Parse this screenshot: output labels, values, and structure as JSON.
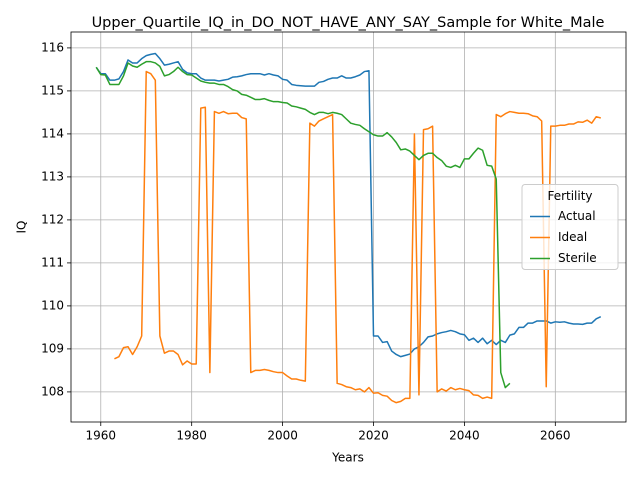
{
  "chart_data": {
    "type": "line",
    "title": "Upper_Quartile_IQ_in_DO_NOT_HAVE_ANY_SAY_Sample for White_Male",
    "x_label": "Years",
    "y_label": "IQ",
    "legend_title": "Fertility",
    "legend": "right",
    "grid": true,
    "xlim": [
      1953.45,
      2075.55
    ],
    "ylim": [
      107.3,
      116.37
    ],
    "xticks": [
      1960,
      1980,
      2000,
      2020,
      2040,
      2060
    ],
    "yticks": [
      108,
      109,
      110,
      111,
      112,
      113,
      114,
      115,
      116
    ],
    "x": [
      1959,
      1960,
      1961,
      1962,
      1963,
      1964,
      1965,
      1966,
      1967,
      1968,
      1969,
      1970,
      1971,
      1972,
      1973,
      1974,
      1975,
      1976,
      1977,
      1978,
      1979,
      1980,
      1981,
      1982,
      1983,
      1984,
      1985,
      1986,
      1987,
      1988,
      1989,
      1990,
      1991,
      1992,
      1993,
      1994,
      1995,
      1996,
      1997,
      1998,
      1999,
      2000,
      2001,
      2002,
      2003,
      2004,
      2005,
      2006,
      2007,
      2008,
      2009,
      2010,
      2011,
      2012,
      2013,
      2014,
      2015,
      2016,
      2017,
      2018,
      2019,
      2020,
      2021,
      2022,
      2023,
      2024,
      2025,
      2026,
      2027,
      2028,
      2029,
      2030,
      2031,
      2032,
      2033,
      2034,
      2035,
      2036,
      2037,
      2038,
      2039,
      2040,
      2041,
      2042,
      2043,
      2044,
      2045,
      2046,
      2047,
      2048,
      2049,
      2050,
      2051,
      2052,
      2053,
      2054,
      2055,
      2056,
      2057,
      2058,
      2059,
      2060,
      2061,
      2062,
      2063,
      2064,
      2065,
      2066,
      2067,
      2068,
      2069,
      2070
    ],
    "series": [
      {
        "name": "Actual",
        "color": "#1f77b4",
        "values": [
          115.55,
          115.4,
          115.4,
          115.25,
          115.25,
          115.28,
          115.45,
          115.72,
          115.65,
          115.65,
          115.75,
          115.82,
          115.85,
          115.87,
          115.75,
          115.6,
          115.62,
          115.65,
          115.68,
          115.5,
          115.42,
          115.4,
          115.4,
          115.3,
          115.25,
          115.25,
          115.25,
          115.23,
          115.25,
          115.27,
          115.32,
          115.33,
          115.35,
          115.38,
          115.4,
          115.4,
          115.4,
          115.37,
          115.4,
          115.37,
          115.35,
          115.27,
          115.25,
          115.15,
          115.13,
          115.12,
          115.11,
          115.11,
          115.11,
          115.2,
          115.22,
          115.27,
          115.3,
          115.3,
          115.35,
          115.3,
          115.3,
          115.33,
          115.37,
          115.45,
          115.47,
          109.3,
          109.3,
          109.15,
          109.17,
          108.95,
          108.87,
          108.82,
          108.85,
          108.88,
          109.0,
          109.05,
          109.15,
          109.28,
          109.3,
          109.35,
          109.38,
          109.4,
          109.43,
          109.4,
          109.35,
          109.33,
          109.2,
          109.25,
          109.15,
          109.25,
          109.12,
          109.2,
          109.1,
          109.2,
          109.15,
          109.32,
          109.35,
          109.5,
          109.5,
          109.6,
          109.6,
          109.65,
          109.65,
          109.65,
          109.6,
          109.63,
          109.62,
          109.63,
          109.6,
          109.58,
          109.58,
          109.57,
          109.6,
          109.6,
          109.7,
          109.75
        ]
      },
      {
        "name": "Ideal",
        "color": "#ff7f0e",
        "values": [
          null,
          null,
          null,
          null,
          108.77,
          108.82,
          109.03,
          109.05,
          108.87,
          109.05,
          109.3,
          115.45,
          115.4,
          115.25,
          109.3,
          108.9,
          108.95,
          108.95,
          108.87,
          108.63,
          108.72,
          108.65,
          108.65,
          114.6,
          114.62,
          108.45,
          114.52,
          114.48,
          114.52,
          114.47,
          114.48,
          114.48,
          114.38,
          114.35,
          108.45,
          108.5,
          108.5,
          108.52,
          108.5,
          108.47,
          108.45,
          108.45,
          108.37,
          108.3,
          108.3,
          108.27,
          108.25,
          114.25,
          114.18,
          114.3,
          114.35,
          114.4,
          114.45,
          108.2,
          108.17,
          108.12,
          108.1,
          108.05,
          108.07,
          108.0,
          108.1,
          107.97,
          107.98,
          107.92,
          107.9,
          107.8,
          107.75,
          107.78,
          107.85,
          107.85,
          114.0,
          107.93,
          114.1,
          114.12,
          114.18,
          108.0,
          108.07,
          108.02,
          108.1,
          108.05,
          108.08,
          108.05,
          108.03,
          107.93,
          107.92,
          107.85,
          107.88,
          107.85,
          114.45,
          114.4,
          114.47,
          114.52,
          114.5,
          114.48,
          114.48,
          114.47,
          114.42,
          114.4,
          114.3,
          108.12,
          114.18,
          114.18,
          114.2,
          114.2,
          114.23,
          114.23,
          114.28,
          114.27,
          114.32,
          114.25,
          114.4,
          114.37
        ]
      },
      {
        "name": "Sterile",
        "color": "#2ca02c",
        "values": [
          115.55,
          115.38,
          115.37,
          115.15,
          115.15,
          115.15,
          115.35,
          115.65,
          115.58,
          115.55,
          115.62,
          115.68,
          115.68,
          115.65,
          115.57,
          115.35,
          115.38,
          115.45,
          115.55,
          115.45,
          115.38,
          115.37,
          115.3,
          115.23,
          115.2,
          115.18,
          115.18,
          115.15,
          115.15,
          115.1,
          115.03,
          115.0,
          114.92,
          114.9,
          114.85,
          114.8,
          114.8,
          114.82,
          114.78,
          114.75,
          114.75,
          114.73,
          114.72,
          114.65,
          114.63,
          114.6,
          114.57,
          114.5,
          114.45,
          114.5,
          114.5,
          114.47,
          114.5,
          114.48,
          114.45,
          114.35,
          114.25,
          114.22,
          114.2,
          114.12,
          114.05,
          113.98,
          113.95,
          113.95,
          114.03,
          113.93,
          113.8,
          113.63,
          113.65,
          113.6,
          113.5,
          113.4,
          113.5,
          113.55,
          113.55,
          113.45,
          113.38,
          113.25,
          113.22,
          113.27,
          113.22,
          113.42,
          113.42,
          113.55,
          113.67,
          113.62,
          113.27,
          113.25,
          112.95,
          108.45,
          108.1,
          108.2,
          null,
          null,
          null,
          null,
          null,
          null,
          null,
          null,
          null,
          null,
          null,
          null,
          null,
          null,
          null,
          null,
          null,
          null,
          null,
          null
        ]
      }
    ]
  }
}
